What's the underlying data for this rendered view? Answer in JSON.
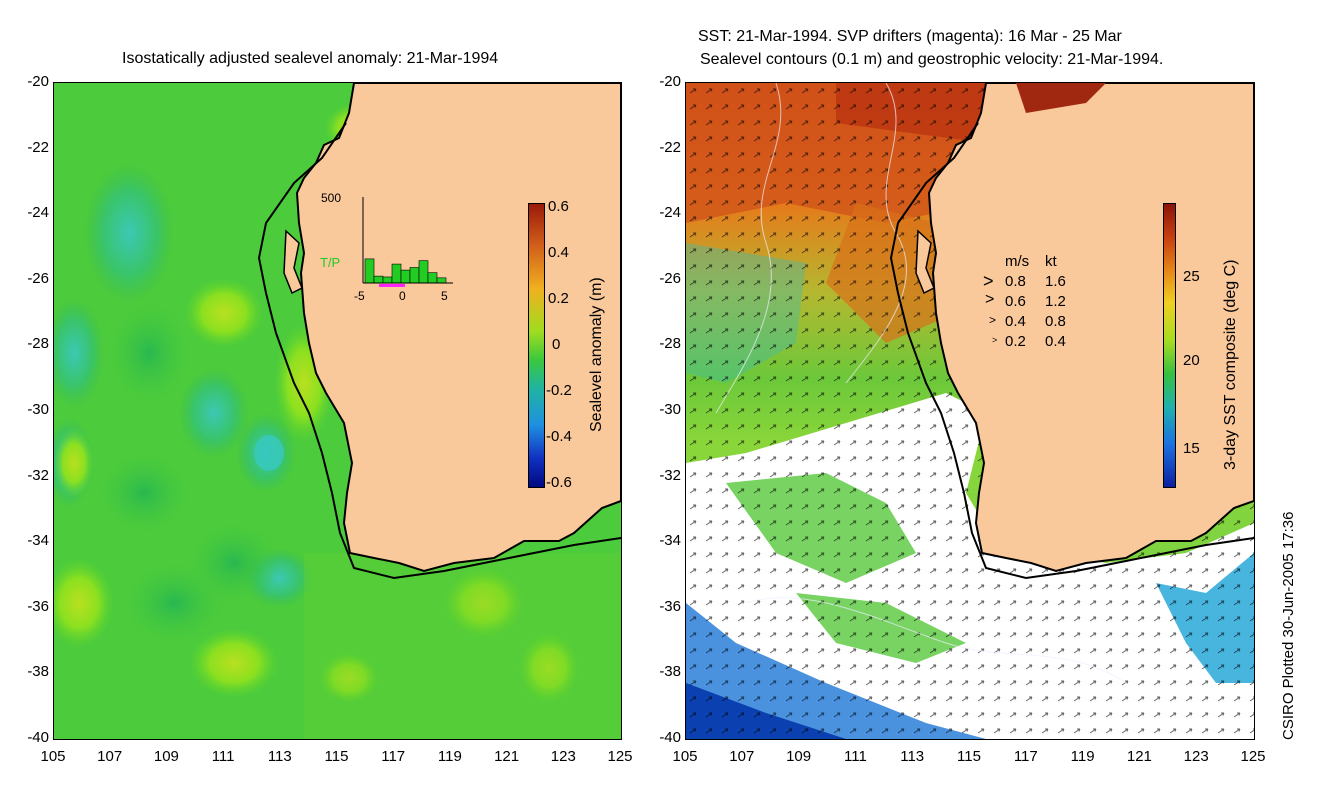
{
  "left": {
    "title": "Isostatically adjusted sealevel anomaly: 21-Mar-1994",
    "y_ticks": [
      "-20",
      "-22",
      "-24",
      "-26",
      "-28",
      "-30",
      "-32",
      "-34",
      "-36",
      "-38",
      "-40"
    ],
    "x_ticks": [
      "105",
      "107",
      "109",
      "111",
      "113",
      "115",
      "117",
      "119",
      "121",
      "123",
      "125"
    ],
    "colorbar": {
      "label": "Sealevel anomaly (m)",
      "ticks": [
        "0.6",
        "0.4",
        "0.2",
        "0",
        "-0.2",
        "-0.4",
        "-0.6"
      ]
    },
    "inset": {
      "ymax": "500",
      "tp_label": "T/P",
      "x_ticks": [
        "-5",
        "0",
        "5"
      ],
      "bars": [
        0.28,
        0.08,
        0.07,
        0.22,
        0.15,
        0.18,
        0.26,
        0.12,
        0.06
      ],
      "bar_color": "#22cc22",
      "tp_color": "#22cc22"
    }
  },
  "right": {
    "title_line1": "SST: 21-Mar-1994. SVP drifters (magenta): 16 Mar - 25 Mar",
    "title_line2": "Sealevel contours (0.1 m) and geostrophic velocity: 21-Mar-1994.",
    "y_ticks": [
      "-20",
      "-22",
      "-24",
      "-26",
      "-28",
      "-30",
      "-32",
      "-34",
      "-36",
      "-38",
      "-40"
    ],
    "x_ticks": [
      "105",
      "107",
      "109",
      "111",
      "113",
      "115",
      "117",
      "119",
      "121",
      "123",
      "125"
    ],
    "colorbar": {
      "label": "3-day SST composite (deg C)",
      "ticks": [
        "25",
        "20",
        "15"
      ]
    },
    "legend": {
      "header_ms": "m/s",
      "header_kt": "kt",
      "rows": [
        {
          "ms": "0.8",
          "kt": "1.6"
        },
        {
          "ms": "0.6",
          "kt": "1.2"
        },
        {
          "ms": "0.4",
          "kt": "0.8"
        },
        {
          "ms": "0.2",
          "kt": "0.4"
        }
      ]
    }
  },
  "footer": "CSIRO Plotted 30-Jun-2005 17:36",
  "colors": {
    "land": "#f9c89b",
    "sea_green": "#3dcc3d",
    "coast": "#000000"
  }
}
